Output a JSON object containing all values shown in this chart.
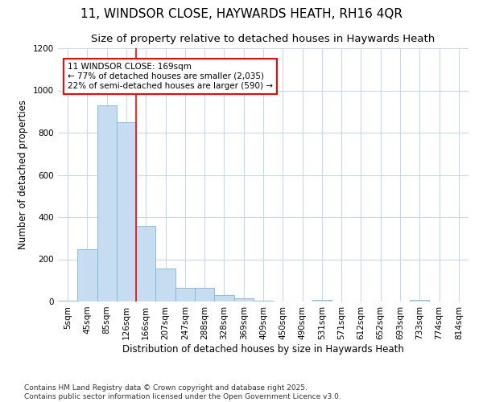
{
  "title_line1": "11, WINDSOR CLOSE, HAYWARDS HEATH, RH16 4QR",
  "title_line2": "Size of property relative to detached houses in Haywards Heath",
  "xlabel": "Distribution of detached houses by size in Haywards Heath",
  "ylabel": "Number of detached properties",
  "footnote": "Contains HM Land Registry data © Crown copyright and database right 2025.\nContains public sector information licensed under the Open Government Licence v3.0.",
  "bin_labels": [
    "5sqm",
    "45sqm",
    "85sqm",
    "126sqm",
    "166sqm",
    "207sqm",
    "247sqm",
    "288sqm",
    "328sqm",
    "369sqm",
    "409sqm",
    "450sqm",
    "490sqm",
    "531sqm",
    "571sqm",
    "612sqm",
    "652sqm",
    "693sqm",
    "733sqm",
    "774sqm",
    "814sqm"
  ],
  "bar_values": [
    5,
    248,
    930,
    848,
    357,
    158,
    65,
    65,
    30,
    14,
    5,
    0,
    0,
    8,
    0,
    0,
    0,
    0,
    8,
    0,
    0
  ],
  "bar_color": "#c6dcf0",
  "bar_edge_color": "#7db8d8",
  "red_line_x": 4.0,
  "annotation_text": "11 WINDSOR CLOSE: 169sqm\n← 77% of detached houses are smaller (2,035)\n22% of semi-detached houses are larger (590) →",
  "ylim": [
    0,
    1200
  ],
  "yticks": [
    0,
    200,
    400,
    600,
    800,
    1000,
    1200
  ],
  "background_color": "#ffffff",
  "plot_bg_color": "#ffffff",
  "grid_color": "#c8d8e8",
  "title_fontsize": 11,
  "subtitle_fontsize": 9.5,
  "label_fontsize": 8.5,
  "tick_fontsize": 7.5,
  "annot_fontsize": 7.5,
  "footnote_fontsize": 6.5
}
